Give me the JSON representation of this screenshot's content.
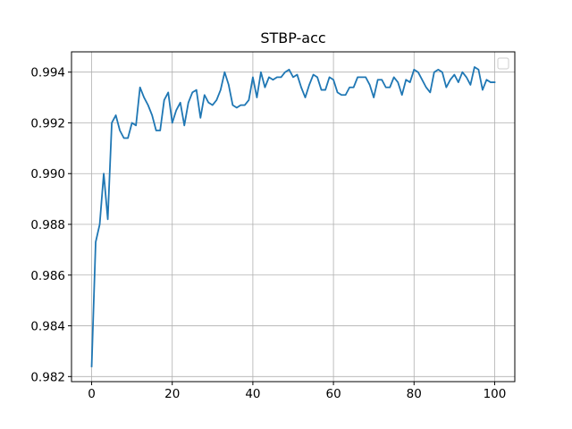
{
  "colors": {
    "series": "#1f77b4",
    "grid": "#b0b0b0",
    "frame": "#000000",
    "background": "#ffffff"
  },
  "chart_data": {
    "type": "line",
    "title": "STBP-acc",
    "xlabel": "",
    "ylabel": "",
    "xlim": [
      -5,
      105
    ],
    "ylim": [
      0.9818,
      0.9948
    ],
    "x_ticks": [
      0,
      20,
      40,
      60,
      80,
      100
    ],
    "x_tick_labels": [
      "0",
      "20",
      "40",
      "60",
      "80",
      "100"
    ],
    "y_ticks": [
      0.982,
      0.984,
      0.986,
      0.988,
      0.99,
      0.992,
      0.994
    ],
    "y_tick_labels": [
      "0.982",
      "0.984",
      "0.986",
      "0.988",
      "0.990",
      "0.992",
      "0.994"
    ],
    "grid": true,
    "legend_placement": "top-right",
    "legend_entries": [],
    "series": [
      {
        "x": [
          0,
          1,
          2,
          3,
          4,
          5,
          6,
          7,
          8,
          9,
          10,
          11,
          12,
          13,
          14,
          15,
          16,
          17,
          18,
          19,
          20,
          21,
          22,
          23,
          24,
          25,
          26,
          27,
          28,
          29,
          30,
          31,
          32,
          33,
          34,
          35,
          36,
          37,
          38,
          39,
          40,
          41,
          42,
          43,
          44,
          45,
          46,
          47,
          48,
          49,
          50,
          51,
          52,
          53,
          54,
          55,
          56,
          57,
          58,
          59,
          60,
          61,
          62,
          63,
          64,
          65,
          66,
          67,
          68,
          69,
          70,
          71,
          72,
          73,
          74,
          75,
          76,
          77,
          78,
          79,
          80,
          81,
          82,
          83,
          84,
          85,
          86,
          87,
          88,
          89,
          90,
          91,
          92,
          93,
          94,
          95,
          96,
          97,
          98,
          99,
          100
        ],
        "values": [
          0.9824,
          0.9873,
          0.988,
          0.99,
          0.9882,
          0.992,
          0.9923,
          0.9917,
          0.9914,
          0.9914,
          0.992,
          0.9919,
          0.9934,
          0.993,
          0.9927,
          0.9923,
          0.9917,
          0.9917,
          0.9929,
          0.9932,
          0.992,
          0.9925,
          0.9928,
          0.9919,
          0.9928,
          0.9932,
          0.9933,
          0.9922,
          0.9931,
          0.9928,
          0.9927,
          0.9929,
          0.9933,
          0.994,
          0.9935,
          0.9927,
          0.9926,
          0.9927,
          0.9927,
          0.9929,
          0.9938,
          0.993,
          0.994,
          0.9934,
          0.9938,
          0.9937,
          0.9938,
          0.9938,
          0.994,
          0.9941,
          0.9938,
          0.9939,
          0.9934,
          0.993,
          0.9935,
          0.9939,
          0.9938,
          0.9933,
          0.9933,
          0.9938,
          0.9937,
          0.9932,
          0.9931,
          0.9931,
          0.9934,
          0.9934,
          0.9938,
          0.9938,
          0.9938,
          0.9935,
          0.993,
          0.9937,
          0.9937,
          0.9934,
          0.9934,
          0.9938,
          0.9936,
          0.9931,
          0.9937,
          0.9936,
          0.9941,
          0.994,
          0.9937,
          0.9934,
          0.9932,
          0.994,
          0.9941,
          0.994,
          0.9934,
          0.9937,
          0.9939,
          0.9936,
          0.994,
          0.9938,
          0.9935,
          0.9942,
          0.9941,
          0.9933,
          0.9937,
          0.9936,
          0.9936
        ]
      }
    ]
  }
}
